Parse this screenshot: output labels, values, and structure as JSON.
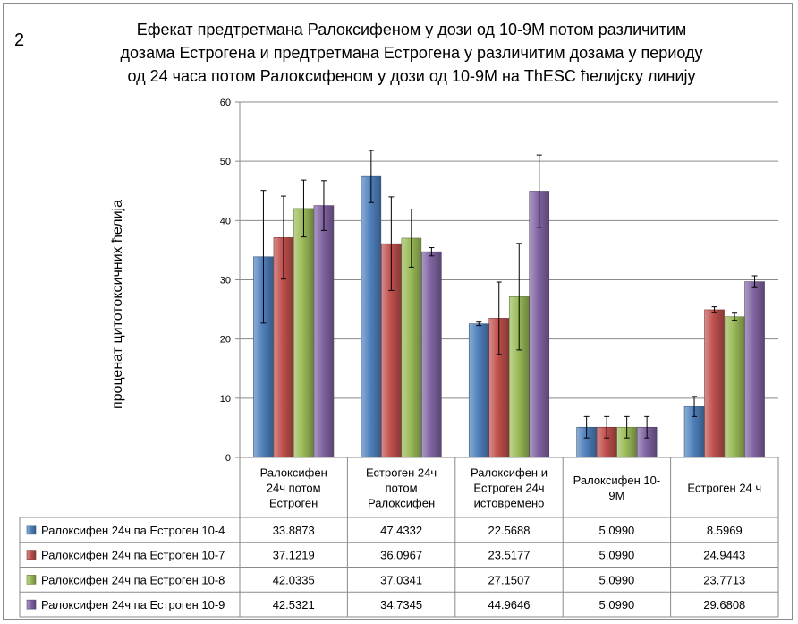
{
  "panel_label": "2",
  "chart_data": {
    "type": "bar",
    "title_lines": [
      "Ефекат предтретмана Ралоксифеном у дози од 10-9М потом различитим",
      "дозама Естрогена и предтретмана Естрогена у различитим дозама у периоду",
      "од 24 часа потом Ралоксифеном у дози од 10-9М на ThESC ћелијску линију"
    ],
    "ylabel": "проценат цитотоксичних ћелија",
    "xlabel": "",
    "ylim": [
      0,
      60
    ],
    "yticks": [
      0,
      10,
      20,
      30,
      40,
      50,
      60
    ],
    "grid": true,
    "categories": [
      [
        "Ралоксифен",
        "24ч потом",
        "Естроген"
      ],
      [
        "Естроген 24ч",
        "потом",
        "Ралоксифен"
      ],
      [
        "Ралоксифен и",
        "Естроген 24ч",
        "истовремено"
      ],
      [
        "Ралоксифен 10-",
        "9М"
      ],
      [
        "Естроген 24 ч"
      ]
    ],
    "series": [
      {
        "name": "Ралоксифен 24ч па Естроген 10-4",
        "color": "#4f81bd",
        "values": [
          33.8873,
          47.4332,
          22.5688,
          5.099,
          8.5969
        ],
        "value_labels": [
          "33.8873",
          "47.4332",
          "22.5688",
          "5.0990",
          "8.5969"
        ],
        "errors": [
          11.2,
          4.4,
          0.3,
          1.8,
          1.7
        ]
      },
      {
        "name": "Ралоксифен 24ч па Естроген 10-7",
        "color": "#c0504d",
        "values": [
          37.1219,
          36.0967,
          23.5177,
          5.099,
          24.9443
        ],
        "value_labels": [
          "37.1219",
          "36.0967",
          "23.5177",
          "5.0990",
          "24.9443"
        ],
        "errors": [
          7.0,
          7.9,
          6.1,
          1.8,
          0.5
        ]
      },
      {
        "name": "Ралоксифен 24ч па Естроген 10-8",
        "color": "#9bbb59",
        "values": [
          42.0335,
          37.0341,
          27.1507,
          5.099,
          23.7713
        ],
        "value_labels": [
          "42.0335",
          "37.0341",
          "27.1507",
          "5.0990",
          "23.7713"
        ],
        "errors": [
          4.8,
          4.9,
          9.0,
          1.8,
          0.6
        ]
      },
      {
        "name": "Ралоксифен 24ч па Естроген 10-9",
        "color": "#8064a2",
        "values": [
          42.5321,
          34.7345,
          44.9646,
          5.099,
          29.6808
        ],
        "value_labels": [
          "42.5321",
          "34.7345",
          "44.9646",
          "5.0990",
          "29.6808"
        ],
        "errors": [
          4.2,
          0.7,
          6.1,
          1.8,
          1.0
        ]
      }
    ]
  }
}
